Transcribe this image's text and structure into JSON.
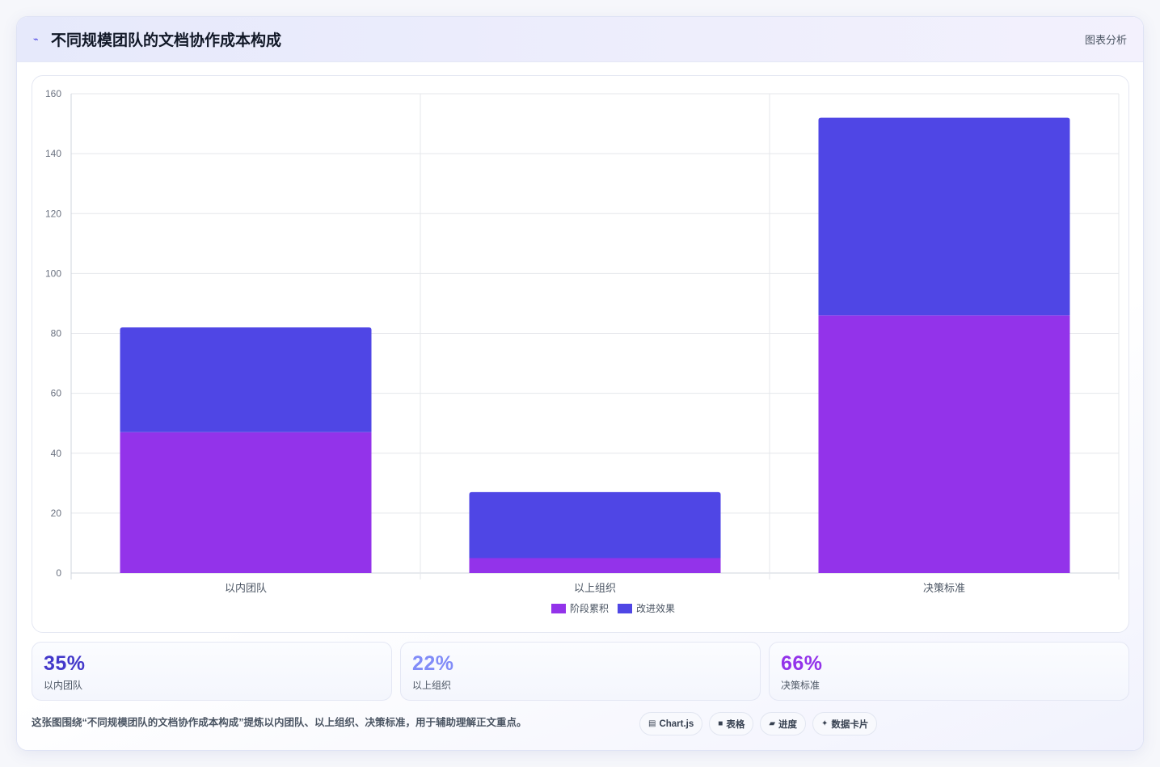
{
  "header": {
    "icon": "chart-logo-icon",
    "title": "不同规模团队的文档协作成本构成",
    "right_label": "图表分析"
  },
  "chart_data": {
    "type": "bar",
    "stacked": true,
    "categories": [
      "以内团队",
      "以上组织",
      "决策标准"
    ],
    "series": [
      {
        "name": "阶段累积",
        "values": [
          47,
          5,
          86
        ],
        "color": "#9333ea"
      },
      {
        "name": "改进效果",
        "values": [
          35,
          22,
          66
        ],
        "color": "#4f46e5"
      }
    ],
    "ylim": [
      0,
      160
    ],
    "yticks": [
      0,
      20,
      40,
      60,
      80,
      100,
      120,
      140,
      160
    ],
    "grid": true,
    "legend_position": "bottom"
  },
  "stats": [
    {
      "value": "35%",
      "label": "以内团队",
      "color": "#4338ca"
    },
    {
      "value": "22%",
      "label": "以上组织",
      "color": "#818cf8"
    },
    {
      "value": "66%",
      "label": "决策标准",
      "color": "#9333ea"
    }
  ],
  "footer": {
    "description": "这张图围绕“不同规模团队的文档协作成本构成”提炼以内团队、以上组织、决策标准，用于辅助理解正文重点。",
    "pills": [
      {
        "icon": "▤",
        "label": "Chart.js"
      },
      {
        "icon": "■",
        "label": "表格"
      },
      {
        "icon": "▰",
        "label": "进度"
      },
      {
        "icon": "✦",
        "label": "数据卡片"
      }
    ]
  }
}
